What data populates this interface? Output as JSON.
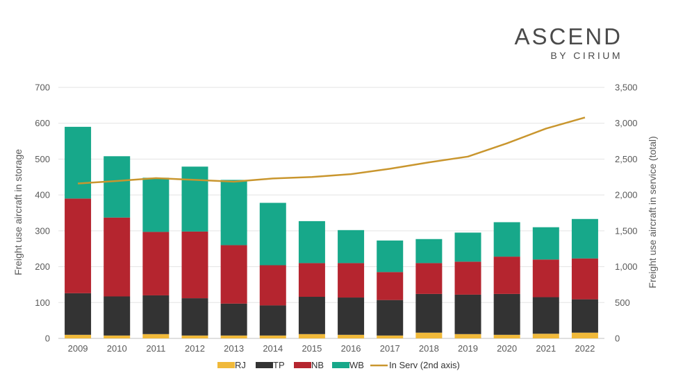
{
  "logo": {
    "main": "ASCEND",
    "sub": "BY CIRIUM"
  },
  "chart_data": {
    "type": "bar",
    "stacked": true,
    "categories": [
      "2009",
      "2010",
      "2011",
      "2012",
      "2013",
      "2014",
      "2015",
      "2016",
      "2017",
      "2018",
      "2019",
      "2020",
      "2021",
      "2022"
    ],
    "series": [
      {
        "name": "RJ",
        "color": "#f0b93a",
        "values": [
          10,
          8,
          12,
          8,
          8,
          8,
          12,
          10,
          8,
          16,
          12,
          10,
          13,
          16
        ]
      },
      {
        "name": "TP",
        "color": "#333333",
        "values": [
          116,
          109,
          108,
          104,
          89,
          84,
          104,
          104,
          99,
          108,
          110,
          114,
          102,
          93
        ]
      },
      {
        "name": "NB",
        "color": "#b5252f",
        "values": [
          264,
          220,
          177,
          186,
          163,
          112,
          94,
          96,
          78,
          86,
          92,
          104,
          105,
          114
        ]
      },
      {
        "name": "WB",
        "color": "#17a88a",
        "values": [
          200,
          171,
          151,
          181,
          182,
          174,
          117,
          92,
          88,
          67,
          81,
          96,
          90,
          110
        ]
      }
    ],
    "line": {
      "name": "In Serv (2nd axis)",
      "color": "#c9962e",
      "values": [
        2160,
        2195,
        2235,
        2210,
        2185,
        2230,
        2250,
        2290,
        2365,
        2455,
        2535,
        2720,
        2925,
        3080
      ]
    },
    "ylabel": "Freight use aircraft in storage",
    "y2label": "Freight use aircraft in service (total)",
    "ylim": [
      0,
      700
    ],
    "y2lim": [
      0,
      3500
    ],
    "yticks": [
      "0",
      "100",
      "200",
      "300",
      "400",
      "500",
      "600",
      "700"
    ],
    "y2ticks": [
      "0",
      "500",
      "1,000",
      "1,500",
      "2,000",
      "2,500",
      "3,000",
      "3,500"
    ],
    "grid": true,
    "legend_position": "bottom"
  }
}
